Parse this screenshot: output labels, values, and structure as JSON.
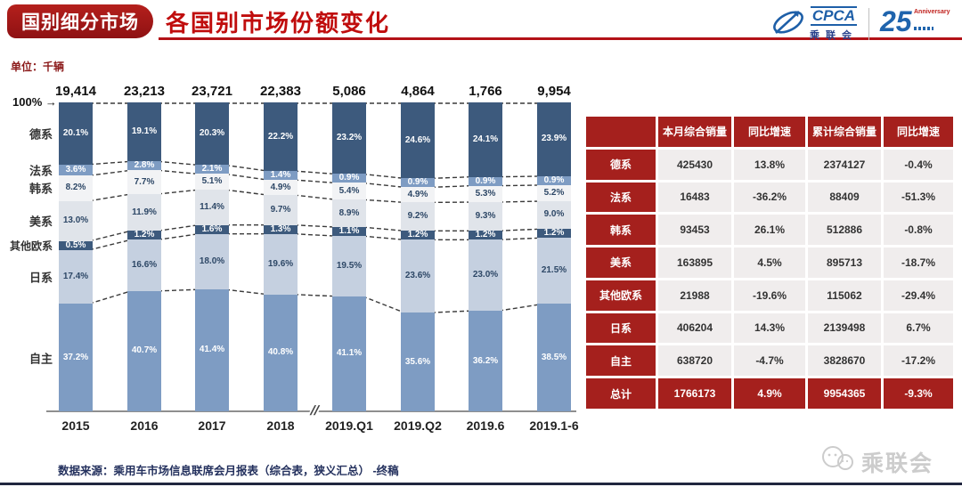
{
  "header": {
    "badge": "国别细分市场",
    "title": "各国别市场份额变化",
    "unit_label": "单位：千辆",
    "cpca_name": "CPCA",
    "cpca_sub": "乘联会",
    "anniversary_number": "25",
    "anniversary_label": "Anniversary"
  },
  "colors": {
    "accent_red": "#a5201d",
    "title_red": "#c00d0d",
    "dark_navy": "#3d5a7d",
    "medium_blue": "#7e9cc3",
    "connector": "#3a3a3a"
  },
  "chart_data": {
    "type": "bar",
    "subtype": "stacked-100-percent",
    "title": "各国别市场份额变化",
    "unit": "千辆",
    "axis_top_label": "100%",
    "axis_arrow": "→",
    "axis_break": "//",
    "legend_position": "left",
    "grid": false,
    "categories": [
      "2015",
      "2016",
      "2017",
      "2018",
      "2019.Q1",
      "2019.Q2",
      "2019.6",
      "2019.1-6"
    ],
    "totals": [
      "19,414",
      "23,213",
      "23,721",
      "22,383",
      "5,086",
      "4,864",
      "1,766",
      "9,954"
    ],
    "series": [
      {
        "name": "德系",
        "color": "#3d5a7d",
        "text_color": "#ffffff",
        "values": [
          20.1,
          19.1,
          20.3,
          22.2,
          23.2,
          24.6,
          24.1,
          23.9
        ]
      },
      {
        "name": "法系",
        "color": "#7e9cc3",
        "text_color": "#ffffff",
        "values": [
          3.6,
          2.8,
          2.1,
          1.4,
          0.9,
          0.9,
          0.9,
          0.9
        ]
      },
      {
        "name": "韩系",
        "color": "#f2f3f5",
        "text_color": "#2d4766",
        "values": [
          8.2,
          7.7,
          5.1,
          4.9,
          5.4,
          4.9,
          5.3,
          5.2
        ]
      },
      {
        "name": "美系",
        "color": "#e0e4ea",
        "text_color": "#2d4766",
        "values": [
          13.0,
          11.9,
          11.4,
          9.7,
          8.9,
          9.2,
          9.3,
          9.0
        ]
      },
      {
        "name": "其他欧系",
        "color": "#3d5a7d",
        "text_color": "#ffffff",
        "values": [
          0.5,
          1.2,
          1.6,
          1.3,
          1.1,
          1.2,
          1.2,
          1.2
        ]
      },
      {
        "name": "日系",
        "color": "#c5d0e0",
        "text_color": "#2d4766",
        "values": [
          17.4,
          16.6,
          18.0,
          19.6,
          19.5,
          23.6,
          23.0,
          21.5
        ]
      },
      {
        "name": "自主",
        "color": "#7e9cc3",
        "text_color": "#ffffff",
        "values": [
          37.2,
          40.7,
          41.4,
          40.8,
          41.1,
          35.6,
          36.2,
          38.5
        ]
      }
    ]
  },
  "table": {
    "headers": [
      "",
      "本月综合销量",
      "同比增速",
      "累计综合销量",
      "同比增速"
    ],
    "rows": [
      {
        "label": "德系",
        "cells": [
          "425430",
          "13.8%",
          "2374127",
          "-0.4%"
        ]
      },
      {
        "label": "法系",
        "cells": [
          "16483",
          "-36.2%",
          "88409",
          "-51.3%"
        ]
      },
      {
        "label": "韩系",
        "cells": [
          "93453",
          "26.1%",
          "512886",
          "-0.8%"
        ]
      },
      {
        "label": "美系",
        "cells": [
          "163895",
          "4.5%",
          "895713",
          "-18.7%"
        ]
      },
      {
        "label": "其他欧系",
        "cells": [
          "21988",
          "-19.6%",
          "115062",
          "-29.4%"
        ]
      },
      {
        "label": "日系",
        "cells": [
          "406204",
          "14.3%",
          "2139498",
          "6.7%"
        ]
      },
      {
        "label": "自主",
        "cells": [
          "638720",
          "-4.7%",
          "3828670",
          "-17.2%"
        ]
      }
    ],
    "total_row": {
      "label": "总计",
      "cells": [
        "1766173",
        "4.9%",
        "9954365",
        "-9.3%"
      ]
    }
  },
  "footer": {
    "source": "数据来源：乘用车市场信息联席会月报表（综合表，狭义汇总）  -终稿",
    "watermark": "乘联会"
  }
}
